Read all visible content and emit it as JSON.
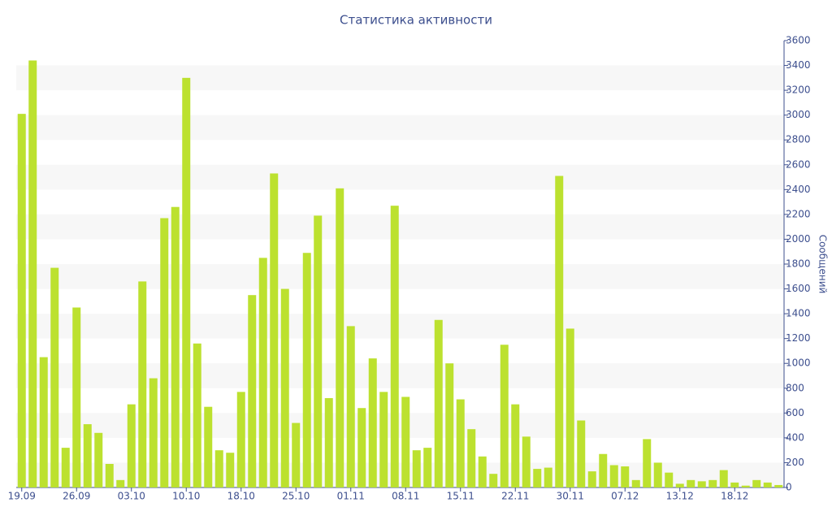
{
  "chart_data": {
    "type": "bar",
    "title": "Статистика активности",
    "y_label": "Сообщений",
    "categories": [
      "19.09",
      null,
      null,
      null,
      null,
      "26.09",
      null,
      null,
      null,
      null,
      "03.10",
      null,
      null,
      null,
      null,
      "10.10",
      null,
      null,
      null,
      null,
      "18.10",
      null,
      null,
      null,
      null,
      "25.10",
      null,
      null,
      null,
      null,
      "01.11",
      null,
      null,
      null,
      null,
      "08.11",
      null,
      null,
      null,
      null,
      "15.11",
      null,
      null,
      null,
      null,
      "22.11",
      null,
      null,
      null,
      null,
      "30.11",
      null,
      null,
      null,
      null,
      "07.12",
      null,
      null,
      null,
      null,
      "13.12",
      null,
      null,
      null,
      null,
      "18.12",
      null,
      null,
      null,
      null
    ],
    "values": [
      3010,
      3440,
      1050,
      1770,
      320,
      1450,
      510,
      440,
      190,
      60,
      670,
      1660,
      880,
      2170,
      2260,
      3300,
      1160,
      650,
      300,
      280,
      770,
      1550,
      1850,
      2530,
      1600,
      520,
      1890,
      2190,
      720,
      2410,
      1300,
      640,
      1040,
      770,
      2270,
      730,
      300,
      320,
      1350,
      1000,
      710,
      470,
      250,
      110,
      1150,
      670,
      410,
      150,
      160,
      2510,
      1280,
      540,
      130,
      270,
      180,
      170,
      60,
      390,
      200,
      120,
      30,
      60,
      50,
      60,
      140,
      40,
      15,
      60,
      40,
      20
    ],
    "color": "#bce12f",
    "ylim": [
      0,
      3600
    ],
    "yticks": [
      0,
      200,
      400,
      600,
      800,
      1000,
      1200,
      1400,
      1600,
      1800,
      2000,
      2200,
      2400,
      2600,
      2800,
      3000,
      3200,
      3400,
      3600
    ],
    "y_axis_side": "right",
    "grid": true
  }
}
